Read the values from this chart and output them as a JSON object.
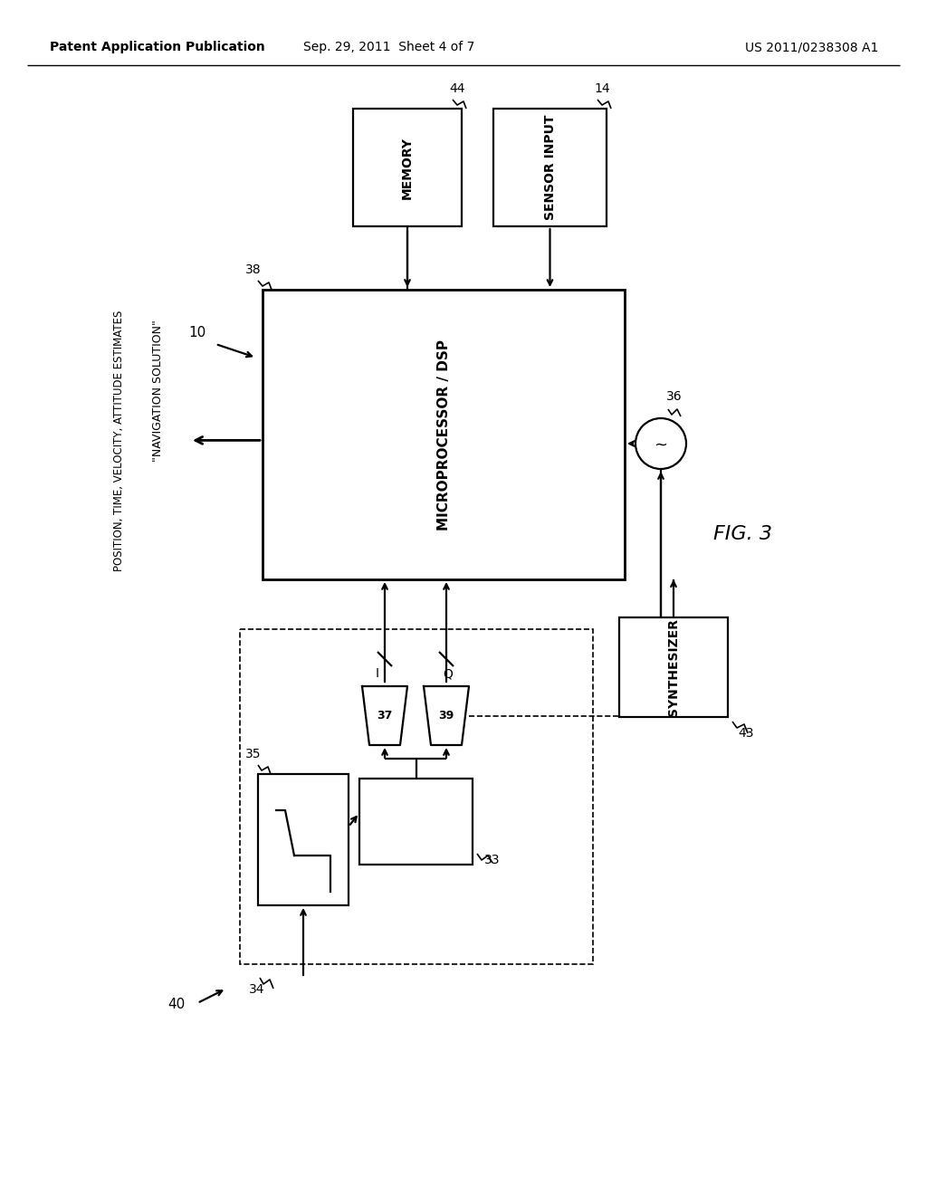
{
  "bg_color": "#ffffff",
  "header_left": "Patent Application Publication",
  "header_mid": "Sep. 29, 2011  Sheet 4 of 7",
  "header_right": "US 2011/0238308 A1",
  "fig_label": "FIG. 3",
  "memory_label": "MEMORY",
  "sensor_label": "SENSOR INPUT",
  "dsp_label": "MICROPROCESSOR / DSP",
  "synthesizer_label": "SYNTHESIZER",
  "nav_line1": "\"NAVIGATION SOLUTION\"",
  "nav_line2": "POSITION, TIME, VELOCITY, ATTITUDE ESTIMATES"
}
